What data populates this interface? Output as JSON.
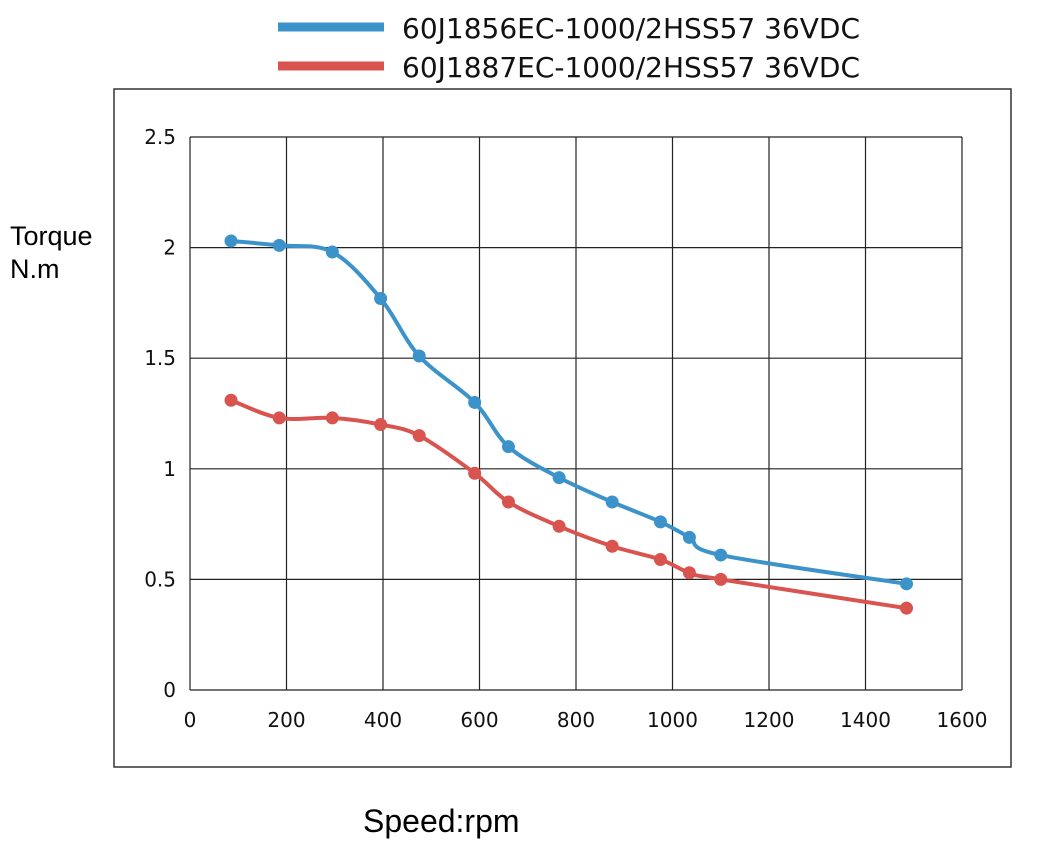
{
  "chart_data": {
    "type": "line",
    "ylabel_lines": [
      "Torque",
      "N.m"
    ],
    "xlabel": "Speed:rpm",
    "xlim": [
      0,
      1600
    ],
    "ylim": [
      0,
      2.5
    ],
    "xticks": [
      "0",
      "200",
      "400",
      "600",
      "800",
      "1000",
      "1200",
      "1400",
      "1600"
    ],
    "yticks": [
      "0",
      "0.5",
      "1",
      "1.5",
      "2",
      "2.5"
    ],
    "grid": true,
    "legend_position": "top",
    "series": [
      {
        "name": "60J1856EC-1000/2HSS57  36VDC",
        "color": "#3b93c9",
        "points": [
          [
            85,
            2.03
          ],
          [
            185,
            2.01
          ],
          [
            295,
            1.98
          ],
          [
            395,
            1.77
          ],
          [
            475,
            1.51
          ],
          [
            590,
            1.3
          ],
          [
            660,
            1.1
          ],
          [
            765,
            0.96
          ],
          [
            875,
            0.85
          ],
          [
            975,
            0.76
          ],
          [
            1035,
            0.69
          ],
          [
            1100,
            0.61
          ],
          [
            1485,
            0.48
          ]
        ]
      },
      {
        "name": "60J1887EC-1000/2HSS57  36VDC",
        "color": "#d9534f",
        "points": [
          [
            85,
            1.31
          ],
          [
            185,
            1.23
          ],
          [
            295,
            1.23
          ],
          [
            395,
            1.2
          ],
          [
            475,
            1.15
          ],
          [
            590,
            0.98
          ],
          [
            660,
            0.85
          ],
          [
            765,
            0.74
          ],
          [
            875,
            0.65
          ],
          [
            975,
            0.59
          ],
          [
            1035,
            0.53
          ],
          [
            1100,
            0.5
          ],
          [
            1485,
            0.37
          ]
        ]
      }
    ]
  }
}
